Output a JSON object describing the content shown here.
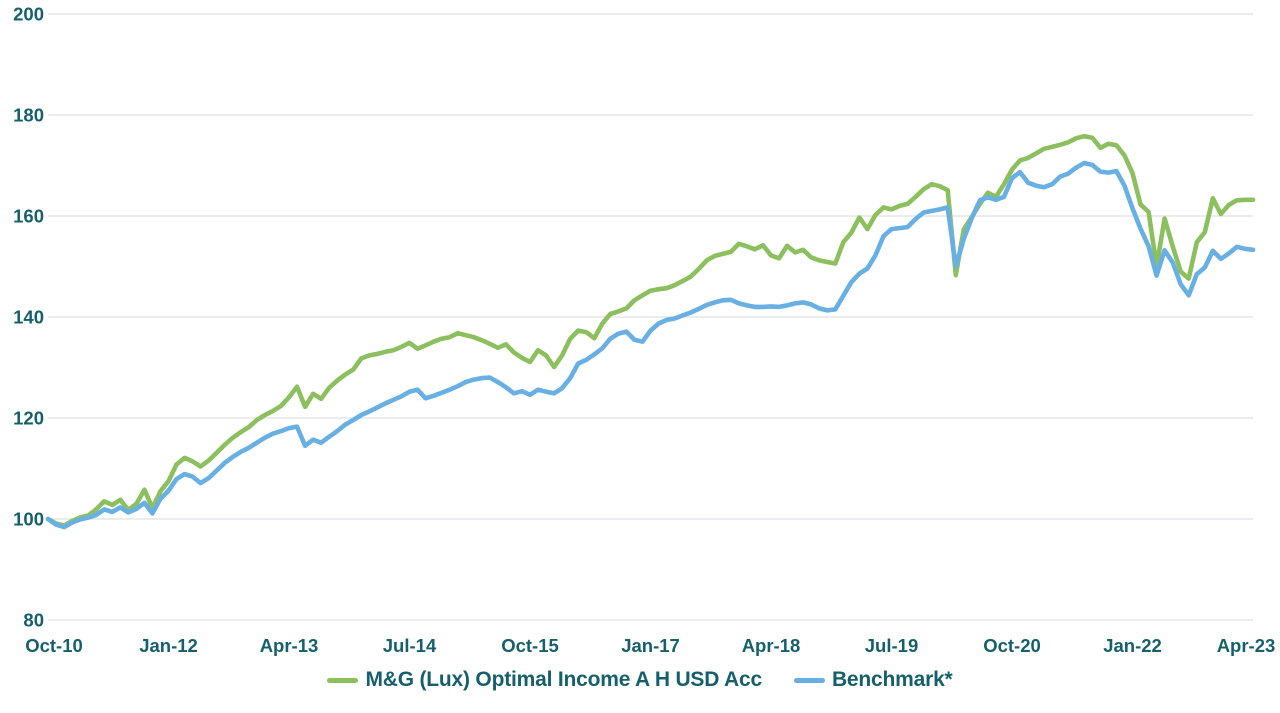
{
  "colors": {
    "fund_green": "#8CC05E",
    "benchmark_blue": "#68B0E3",
    "axis_text": "#16606C",
    "gridline": "#DDE0E2",
    "background": "#FFFFFF"
  },
  "legend": {
    "fund_label": "M&G (Lux) Optimal Income A H USD Acc",
    "benchmark_label": "Benchmark*"
  },
  "chart_data": {
    "type": "line",
    "title": "",
    "xlabel": "",
    "ylabel": "",
    "ylim": [
      80,
      200
    ],
    "y_ticks": [
      80,
      100,
      120,
      140,
      160,
      180,
      200
    ],
    "grid": "horizontal",
    "legend_position": "bottom-center",
    "x_unit": "month",
    "x_months_total": 150,
    "x_ticks": [
      {
        "month": 0,
        "label": "Oct-10"
      },
      {
        "month": 15,
        "label": "Jan-12"
      },
      {
        "month": 30,
        "label": "Apr-13"
      },
      {
        "month": 45,
        "label": "Jul-14"
      },
      {
        "month": 60,
        "label": "Oct-15"
      },
      {
        "month": 75,
        "label": "Jan-17"
      },
      {
        "month": 90,
        "label": "Apr-18"
      },
      {
        "month": 105,
        "label": "Jul-19"
      },
      {
        "month": 120,
        "label": "Oct-20"
      },
      {
        "month": 135,
        "label": "Jan-22"
      },
      {
        "month": 150,
        "label": "Apr-23"
      }
    ],
    "series": [
      {
        "name": "M&G (Lux) Optimal Income A H USD Acc",
        "color": "#8CC05E",
        "values": [
          100,
          99.1,
          98.7,
          99.6,
          100.3,
          100.7,
          101.9,
          103.5,
          102.8,
          103.8,
          101.8,
          103.0,
          105.8,
          102.2,
          105.5,
          107.5,
          110.8,
          112.1,
          111.4,
          110.4,
          111.6,
          113.1,
          114.7,
          116.1,
          117.2,
          118.2,
          119.6,
          120.6,
          121.4,
          122.4,
          124.1,
          126.2,
          122.2,
          124.8,
          123.8,
          126.0,
          127.4,
          128.6,
          129.6,
          131.8,
          132.4,
          132.7,
          133.1,
          133.4,
          134.1,
          134.9,
          133.7,
          134.4,
          135.1,
          135.7,
          136.0,
          136.8,
          136.4,
          136.0,
          135.4,
          134.7,
          133.9,
          134.6,
          133.0,
          131.9,
          131.1,
          133.4,
          132.4,
          130.1,
          132.4,
          135.7,
          137.3,
          137.0,
          135.8,
          138.7,
          140.6,
          141.1,
          141.7,
          143.3,
          144.3,
          145.2,
          145.5,
          145.7,
          146.3,
          147.1,
          148.0,
          149.5,
          151.2,
          152.1,
          152.5,
          152.9,
          154.5,
          154.0,
          153.4,
          154.2,
          152.2,
          151.6,
          154.1,
          152.8,
          153.3,
          151.8,
          151.2,
          150.9,
          150.6,
          154.8,
          156.7,
          159.7,
          157.4,
          160.2,
          161.7,
          161.3,
          162.0,
          162.4,
          163.8,
          165.3,
          166.3,
          165.9,
          165.1,
          148.3,
          157.4,
          159.8,
          162.4,
          164.6,
          163.8,
          166.3,
          169.2,
          171.0,
          171.5,
          172.4,
          173.3,
          173.7,
          174.1,
          174.6,
          175.4,
          175.8,
          175.5,
          173.5,
          174.3,
          174.0,
          172.0,
          168.5,
          162.3,
          160.8,
          150.0,
          159.5,
          154.0,
          149.0,
          147.6,
          154.8,
          156.8,
          163.5,
          160.4,
          162.2,
          163.1,
          163.2,
          163.2
        ]
      },
      {
        "name": "Benchmark*",
        "color": "#68B0E3",
        "values": [
          100,
          98.9,
          98.4,
          99.3,
          99.9,
          100.3,
          100.8,
          101.9,
          101.4,
          102.3,
          101.3,
          102.0,
          103.2,
          101.1,
          104.0,
          105.6,
          107.9,
          108.9,
          108.4,
          107.1,
          108.1,
          109.6,
          111.1,
          112.3,
          113.3,
          114.1,
          115.1,
          116.1,
          116.9,
          117.4,
          118.0,
          118.3,
          114.5,
          115.7,
          115.1,
          116.3,
          117.4,
          118.7,
          119.6,
          120.6,
          121.3,
          122.1,
          122.9,
          123.6,
          124.3,
          125.2,
          125.6,
          123.9,
          124.4,
          125.0,
          125.6,
          126.3,
          127.1,
          127.6,
          127.9,
          128.0,
          127.1,
          126.1,
          124.9,
          125.3,
          124.6,
          125.6,
          125.2,
          124.9,
          125.9,
          127.9,
          130.8,
          131.5,
          132.6,
          133.8,
          135.7,
          136.7,
          137.1,
          135.5,
          135.1,
          137.3,
          138.7,
          139.4,
          139.7,
          140.3,
          140.9,
          141.6,
          142.4,
          142.9,
          143.3,
          143.4,
          142.7,
          142.3,
          142.0,
          142.0,
          142.1,
          142.0,
          142.3,
          142.7,
          142.9,
          142.5,
          141.7,
          141.3,
          141.5,
          144.2,
          146.9,
          148.6,
          149.6,
          152.2,
          156.0,
          157.4,
          157.6,
          157.8,
          159.4,
          160.7,
          161.0,
          161.3,
          161.7,
          150.0,
          155.5,
          159.6,
          163.1,
          163.7,
          163.2,
          163.8,
          167.5,
          168.7,
          166.6,
          166.0,
          165.7,
          166.3,
          167.8,
          168.4,
          169.6,
          170.5,
          170.1,
          168.8,
          168.6,
          168.9,
          166.0,
          161.5,
          157.5,
          154.0,
          148.2,
          153.2,
          150.8,
          146.5,
          144.3,
          148.5,
          149.8,
          153.1,
          151.5,
          152.6,
          153.9,
          153.5,
          153.3
        ]
      }
    ]
  }
}
